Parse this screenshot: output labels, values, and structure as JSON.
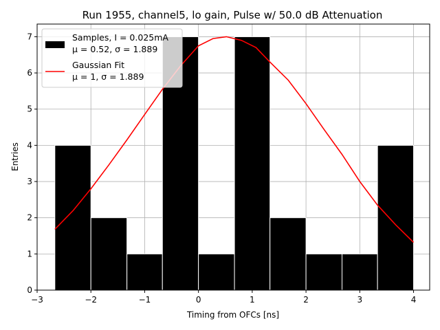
{
  "chart_data": {
    "type": "bar",
    "title": "Run 1955, channel5, lo gain, Pulse w/ 50.0 dB Attenuation",
    "xlabel": "Timing from OFCs [ns]",
    "ylabel": "Entries",
    "xlim": [
      -3.0,
      4.3
    ],
    "ylim": [
      0,
      7.35
    ],
    "xticks": [
      -3,
      -2,
      -1,
      0,
      1,
      2,
      3,
      4
    ],
    "yticks": [
      0,
      1,
      2,
      3,
      4,
      5,
      6,
      7
    ],
    "grid": true,
    "legend_position": "top-left",
    "histogram": {
      "name": "Samples, I = 0.025mA",
      "name_line2": "μ = 0.52, σ = 1.889",
      "color": "#000000",
      "edgecolor": "#ffffff",
      "bin_edges": [
        -2.67,
        -2.0,
        -1.33,
        -0.67,
        0.0,
        0.67,
        1.33,
        2.0,
        2.67,
        3.33,
        4.0
      ],
      "counts": [
        4,
        2,
        1,
        7,
        1,
        7,
        2,
        1,
        1,
        4
      ]
    },
    "fit": {
      "name": "Gaussian Fit",
      "name_line2": "μ = 1, σ = 1.889",
      "color": "#ff0000",
      "x": [
        -2.67,
        -2.33,
        -2.0,
        -1.67,
        -1.33,
        -1.0,
        -0.67,
        -0.33,
        0.0,
        0.27,
        0.52,
        0.8,
        1.07,
        1.33,
        1.67,
        2.0,
        2.33,
        2.67,
        3.0,
        3.33,
        3.67,
        4.0
      ],
      "y": [
        1.68,
        2.2,
        2.8,
        3.45,
        4.15,
        4.85,
        5.55,
        6.2,
        6.75,
        6.95,
        7.0,
        6.9,
        6.7,
        6.3,
        5.8,
        5.15,
        4.45,
        3.75,
        3.0,
        2.35,
        1.8,
        1.32
      ]
    }
  }
}
